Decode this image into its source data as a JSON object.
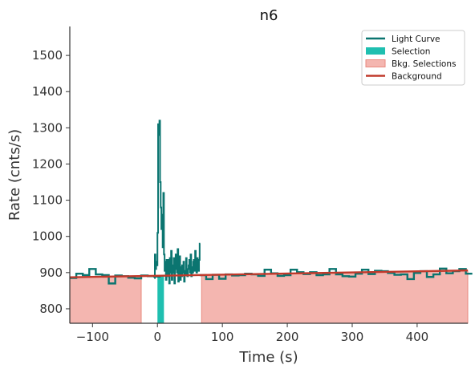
{
  "chart_data": {
    "type": "line",
    "title": "n6",
    "xlabel": "Time (s)",
    "ylabel": "Rate (cnts/s)",
    "xlim": [
      -135,
      478
    ],
    "ylim": [
      760,
      1580
    ],
    "xticks": [
      -100,
      0,
      100,
      200,
      300,
      400
    ],
    "xtick_labels": [
      "−100",
      "0",
      "100",
      "200",
      "300",
      "400"
    ],
    "yticks": [
      800,
      900,
      1000,
      1100,
      1200,
      1300,
      1400,
      1500
    ],
    "ytick_labels": [
      "800",
      "900",
      "1000",
      "1100",
      "1200",
      "1300",
      "1400",
      "1500"
    ],
    "legend_position": "top-right",
    "legend": [
      {
        "label": "Light Curve",
        "kind": "line",
        "color": "#0b7570"
      },
      {
        "label": "Selection",
        "kind": "patch",
        "color": "#1fbfb0"
      },
      {
        "label": "Bkg. Selections",
        "kind": "patch",
        "color": "#f4b6b0"
      },
      {
        "label": "Background",
        "kind": "line",
        "color": "#c0392b"
      }
    ],
    "colors": {
      "light_curve": "#0b7570",
      "selection": "#1fbfb0",
      "bkg_fill": "#f4b6b0",
      "bkg_edge": "#e8897f",
      "background": "#c0392b"
    },
    "background_model": {
      "x": [
        -135,
        478
      ],
      "y": [
        887,
        906
      ]
    },
    "selection_interval": [
      0,
      10
    ],
    "bkg_selections": [
      [
        -135,
        -25
      ],
      [
        68,
        478
      ]
    ],
    "light_curve": {
      "low_res": {
        "x": [
          -135,
          -125,
          -115,
          -105,
          -95,
          -85,
          -75,
          -65,
          -55,
          -45,
          -35,
          -25,
          -15,
          -5,
          65,
          75,
          85,
          95,
          105,
          115,
          125,
          135,
          145,
          155,
          165,
          175,
          185,
          195,
          205,
          215,
          225,
          235,
          245,
          255,
          265,
          275,
          285,
          295,
          305,
          315,
          325,
          335,
          345,
          355,
          365,
          375,
          385,
          395,
          405,
          415,
          425,
          435,
          445,
          455,
          465,
          475
        ],
        "y": [
          885,
          897,
          893,
          910,
          895,
          893,
          870,
          892,
          890,
          886,
          884,
          892,
          890,
          889,
          893,
          882,
          894,
          883,
          895,
          892,
          893,
          897,
          895,
          891,
          908,
          898,
          891,
          893,
          908,
          901,
          896,
          901,
          893,
          895,
          910,
          895,
          890,
          889,
          897,
          908,
          896,
          905,
          904,
          899,
          894,
          895,
          882,
          899,
          904,
          888,
          895,
          911,
          898,
          904,
          910,
          897
        ]
      },
      "high_res": {
        "x": [
          -5,
          -4,
          -3,
          -2,
          -1,
          0,
          1,
          2,
          3,
          4,
          5,
          6,
          7,
          8,
          9,
          10,
          11,
          12,
          13,
          14,
          15,
          16,
          17,
          18,
          19,
          20,
          21,
          22,
          23,
          24,
          25,
          26,
          27,
          28,
          29,
          30,
          31,
          32,
          33,
          34,
          35,
          36,
          37,
          38,
          39,
          40,
          41,
          42,
          43,
          44,
          45,
          46,
          47,
          48,
          49,
          50,
          51,
          52,
          53,
          54,
          55,
          56,
          57,
          58,
          59,
          60,
          61,
          62,
          63,
          64,
          65
        ],
        "y": [
          885,
          950,
          910,
          930,
          920,
          1010,
          1310,
          1280,
          1320,
          1150,
          1080,
          1020,
          1060,
          970,
          1120,
          950,
          905,
          930,
          880,
          935,
          890,
          910,
          935,
          870,
          940,
          900,
          960,
          880,
          920,
          900,
          940,
          870,
          930,
          950,
          910,
          900,
          965,
          875,
          900,
          945,
          880,
          915,
          890,
          920,
          900,
          930,
          875,
          905,
          895,
          940,
          905,
          890,
          910,
          920,
          935,
          900,
          950,
          890,
          915,
          900,
          930,
          935,
          905,
          960,
          925,
          900,
          940,
          915,
          905,
          935,
          980
        ]
      }
    }
  }
}
